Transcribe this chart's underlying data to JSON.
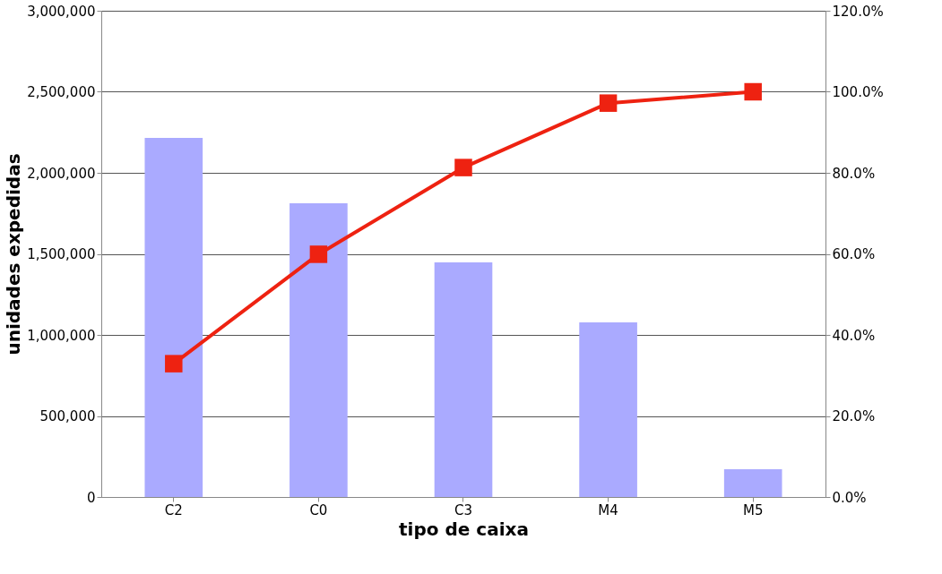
{
  "chart_data": {
    "type": "bar",
    "xlabel": "tipo de caixa",
    "ylabel": "unidades expedidas",
    "categories": [
      "C2",
      "C0",
      "C3",
      "M4",
      "M5"
    ],
    "series": [
      {
        "color": "#aaaaff",
        "values": [
          2215000,
          1812000,
          1448000,
          1077000,
          171000
        ]
      },
      {
        "type": "line",
        "axis": "y2",
        "color": "#ee2211",
        "marker": "square",
        "line_style": "solid",
        "values": [
          32.9,
          59.9,
          81.3,
          97.2,
          100
        ]
      }
    ],
    "ylim": [
      0,
      3000000
    ],
    "yticks": [
      {
        "value": 0,
        "label": "0"
      },
      {
        "value": 500000,
        "label": "500,000"
      },
      {
        "value": 1000000,
        "label": "1,000,000"
      },
      {
        "value": 1500000,
        "label": "1,500,000"
      },
      {
        "value": 2000000,
        "label": "2,000,000"
      },
      {
        "value": 2500000,
        "label": "2,500,000"
      },
      {
        "value": 3000000,
        "label": "3,000,000"
      }
    ],
    "y2lim": [
      0,
      120
    ],
    "y2ticks": [
      {
        "value": 0,
        "label": "0.0%"
      },
      {
        "value": 20,
        "label": "20.0%"
      },
      {
        "value": 40,
        "label": "40.0%"
      },
      {
        "value": 60,
        "label": "60.0%"
      },
      {
        "value": 80,
        "label": "80.0%"
      },
      {
        "value": 100,
        "label": "100.0%"
      },
      {
        "value": 120,
        "label": "120.0%"
      }
    ],
    "grid": "y"
  }
}
